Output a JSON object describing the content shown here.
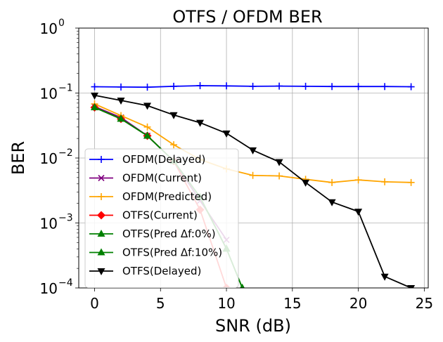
{
  "chart_data": {
    "type": "line",
    "title": "OTFS / OFDM BER",
    "xlabel": "SNR (dB)",
    "ylabel": "BER",
    "yscale": "log",
    "xlim": [
      -1.2,
      25.3
    ],
    "ylim": [
      0.0001,
      1
    ],
    "xticks": [
      0,
      5,
      10,
      15,
      20,
      25
    ],
    "xtick_labels": [
      "0",
      "5",
      "10",
      "15",
      "20",
      "25"
    ],
    "yticks": [
      0.0001,
      0.001,
      0.01,
      0.1,
      1
    ],
    "ytick_labels": [
      {
        "base": "10",
        "exp": "−4"
      },
      {
        "base": "10",
        "exp": "−3"
      },
      {
        "base": "10",
        "exp": "−2"
      },
      {
        "base": "10",
        "exp": "−1"
      },
      {
        "base": "10",
        "exp": "0"
      }
    ],
    "grid": true,
    "legend_position": "lower-left",
    "series": [
      {
        "name": "OFDM(Delayed)",
        "color": "#0000ff",
        "marker": "plus",
        "x": [
          0,
          2,
          4,
          6,
          8,
          10,
          12,
          14,
          16,
          18,
          20,
          22,
          24
        ],
        "y": [
          0.125,
          0.124,
          0.123,
          0.127,
          0.13,
          0.129,
          0.127,
          0.128,
          0.127,
          0.126,
          0.126,
          0.126,
          0.125
        ]
      },
      {
        "name": "OFDM(Current)",
        "color": "#800080",
        "marker": "x",
        "x": [
          0,
          2,
          4,
          6,
          8,
          10
        ],
        "y": [
          0.062,
          0.042,
          0.022,
          0.009,
          0.0022,
          0.00055
        ]
      },
      {
        "name": "OFDM(Predicted)",
        "color": "#ffa500",
        "marker": "plus",
        "x": [
          0,
          2,
          4,
          6,
          8,
          10,
          12,
          14,
          16,
          18,
          20,
          22,
          24
        ],
        "y": [
          0.068,
          0.045,
          0.03,
          0.016,
          0.0095,
          0.0068,
          0.0054,
          0.0053,
          0.0047,
          0.0042,
          0.0046,
          0.0043,
          0.0042
        ]
      },
      {
        "name": "OTFS(Current)",
        "color": "#ff0000",
        "marker": "diamond",
        "x": [
          0,
          2,
          4,
          6,
          8,
          10
        ],
        "y": [
          0.06,
          0.04,
          0.022,
          0.009,
          0.0016,
          0.0001
        ]
      },
      {
        "name": "OTFS(Pred Δf:0%)",
        "color": "#008000",
        "marker": "triangle-up",
        "x": [
          0,
          2,
          4,
          6,
          8,
          10,
          11.2
        ],
        "y": [
          0.06,
          0.04,
          0.022,
          0.009,
          0.0025,
          0.0004,
          0.0001
        ]
      },
      {
        "name": "OTFS(Pred Δf:10%)",
        "color": "#008000",
        "marker": "triangle-up",
        "x": [
          0,
          2,
          4,
          6,
          8,
          10,
          11.2
        ],
        "y": [
          0.06,
          0.04,
          0.022,
          0.009,
          0.0025,
          0.0004,
          0.0001
        ]
      },
      {
        "name": "OTFS(Delayed)",
        "color": "#000000",
        "marker": "triangle-down",
        "x": [
          0,
          2,
          4,
          6,
          8,
          10,
          12,
          14,
          16,
          18,
          20,
          22,
          24
        ],
        "y": [
          0.092,
          0.077,
          0.064,
          0.046,
          0.035,
          0.024,
          0.0132,
          0.0087,
          0.0042,
          0.0021,
          0.0015,
          0.00015,
          0.0001
        ]
      }
    ]
  }
}
